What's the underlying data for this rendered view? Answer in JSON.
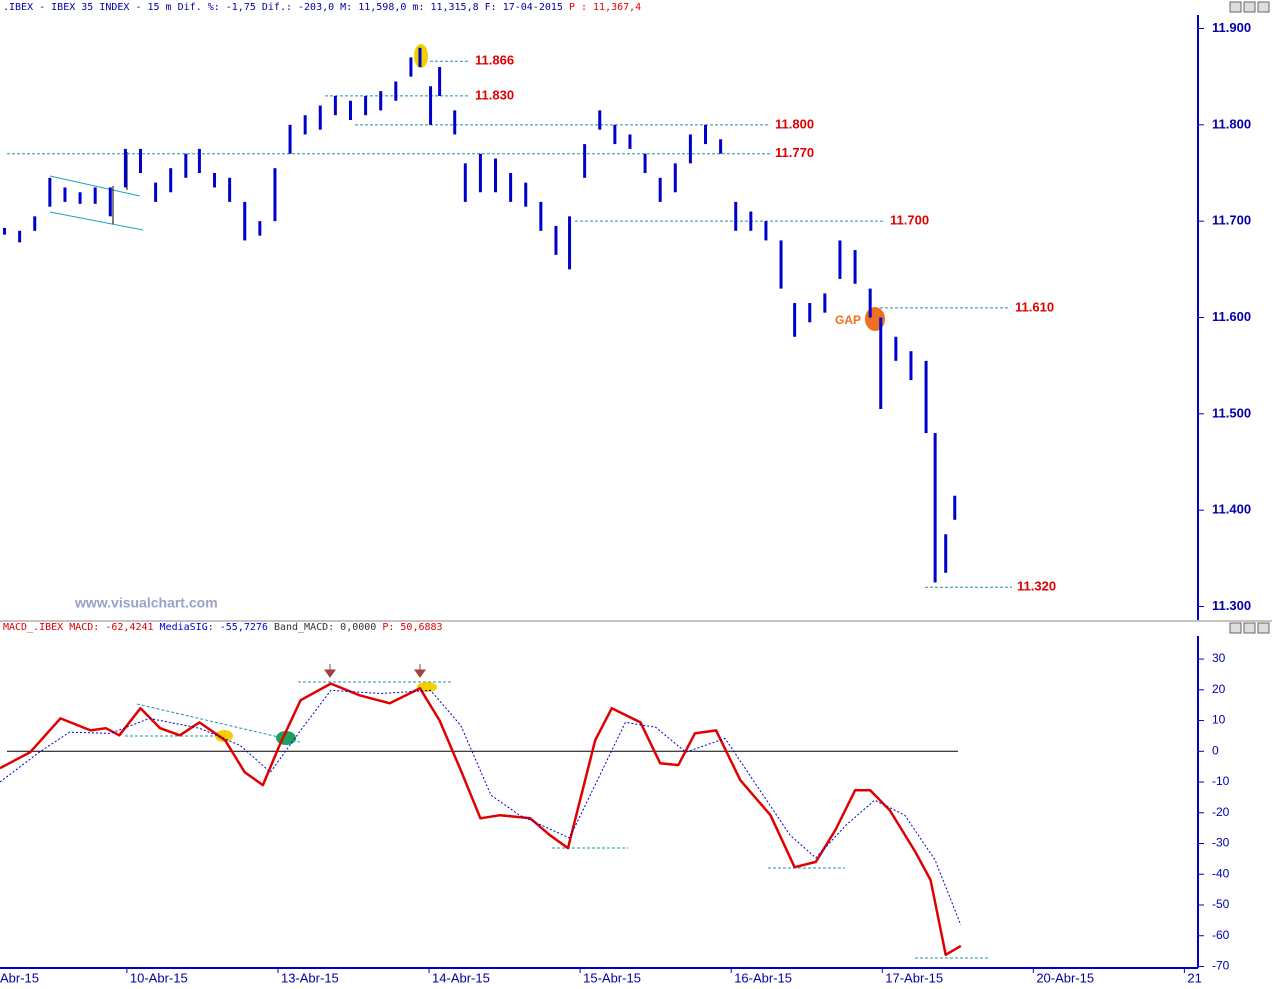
{
  "chart_data": [
    {
      "type": "hilo",
      "title": ".IBEX - IBEX 35 INDEX -  15 m Dif. %: -1,75 Dif.: -203,0 M: 11,598,0 m: 11,315,8 F: 17-04-2015",
      "title_price": "P : 11,367,4",
      "watermark": "www.visualchart.com",
      "annotation": "GAP",
      "color": "#0000cc",
      "x": [
        0.19,
        0.29,
        0.39,
        0.49,
        0.59,
        0.69,
        0.79,
        0.89,
        0.99,
        1.09,
        1.19,
        1.29,
        1.39,
        1.48,
        1.58,
        1.68,
        1.78,
        1.88,
        1.98,
        2.08,
        2.18,
        2.28,
        2.38,
        2.48,
        2.58,
        2.68,
        2.78,
        2.88,
        2.94,
        3.01,
        3.07,
        3.17,
        3.24,
        3.34,
        3.44,
        3.54,
        3.64,
        3.74,
        3.84,
        3.93,
        4.03,
        4.13,
        4.23,
        4.33,
        4.43,
        4.53,
        4.63,
        4.73,
        4.83,
        4.93,
        5.03,
        5.13,
        5.23,
        5.33,
        5.42,
        5.52,
        5.62,
        5.72,
        5.82,
        5.92,
        5.99,
        6.09,
        6.19,
        6.29,
        6.35,
        6.42,
        6.48
      ],
      "high": [
        11693,
        11690,
        11705,
        11745,
        11735,
        11730,
        11735,
        11735,
        11775,
        11775,
        11740,
        11755,
        11770,
        11775,
        11750,
        11745,
        11720,
        11700,
        11755,
        11800,
        11810,
        11820,
        11830,
        11825,
        11830,
        11835,
        11845,
        11870,
        11880,
        11840,
        11860,
        11815,
        11760,
        11770,
        11765,
        11750,
        11740,
        11720,
        11695,
        11705,
        11780,
        11815,
        11800,
        11790,
        11770,
        11745,
        11760,
        11790,
        11800,
        11785,
        11720,
        11710,
        11700,
        11680,
        11615,
        11615,
        11625,
        11680,
        11670,
        11630,
        11600,
        11580,
        11565,
        11555,
        11480,
        11375,
        11415
      ],
      "low": [
        11686,
        11678,
        11690,
        11715,
        11720,
        11718,
        11718,
        11705,
        11735,
        11750,
        11720,
        11730,
        11745,
        11750,
        11735,
        11720,
        11680,
        11685,
        11700,
        11770,
        11790,
        11795,
        11810,
        11805,
        11810,
        11815,
        11825,
        11850,
        11860,
        11800,
        11830,
        11790,
        11720,
        11730,
        11730,
        11720,
        11715,
        11690,
        11665,
        11650,
        11745,
        11795,
        11780,
        11775,
        11750,
        11720,
        11730,
        11760,
        11780,
        11770,
        11690,
        11690,
        11680,
        11630,
        11580,
        11595,
        11605,
        11640,
        11635,
        11600,
        11505,
        11555,
        11535,
        11480,
        11325,
        11335,
        11390
      ],
      "levels": [
        {
          "value": 11866,
          "label": "11.866"
        },
        {
          "value": 11830,
          "label": "11.830"
        },
        {
          "value": 11800,
          "label": "11.800"
        },
        {
          "value": 11770,
          "label": "11.770"
        },
        {
          "value": 11700,
          "label": "11.700"
        },
        {
          "value": 11610,
          "label": "11.610"
        },
        {
          "value": 11320,
          "label": "11.320"
        }
      ],
      "xlim": [
        0.16,
        8.09
      ],
      "ylim": [
        11286,
        11914
      ],
      "yticks": [
        {
          "value": 11900,
          "label": "11.900"
        },
        {
          "value": 11800,
          "label": "11.800"
        },
        {
          "value": 11700,
          "label": "11.700"
        },
        {
          "value": 11600,
          "label": "11.600"
        },
        {
          "value": 11500,
          "label": "11.500"
        },
        {
          "value": 11400,
          "label": "11.400"
        },
        {
          "value": 11300,
          "label": "11.300"
        }
      ]
    },
    {
      "type": "line",
      "title_parts": [
        "MACD_.IBEX MACD: -62,4241",
        "MediaSIG: -55,7276",
        "Band_MACD: 0,0000",
        "P: 50,6883"
      ],
      "series": [
        {
          "color": "#e00000",
          "x": [
            0.16,
            0.36,
            0.56,
            0.76,
            0.86,
            0.95,
            1.09,
            1.22,
            1.35,
            1.48,
            1.65,
            1.78,
            1.9,
            2.01,
            2.15,
            2.35,
            2.54,
            2.74,
            2.94,
            3.07,
            3.21,
            3.34,
            3.47,
            3.67,
            3.8,
            3.92,
            4.1,
            4.21,
            4.4,
            4.53,
            4.65,
            4.76,
            4.9,
            5.06,
            5.26,
            5.42,
            5.56,
            5.69,
            5.82,
            5.92,
            6.05,
            6.22,
            6.32,
            6.42,
            6.52
          ],
          "values": [
            -5.5,
            -0.3,
            10.7,
            6.8,
            7.5,
            5.2,
            14,
            7.5,
            5.2,
            9.4,
            3.6,
            -6.8,
            -11,
            1.9,
            16.6,
            22,
            18.2,
            15.6,
            20.5,
            10,
            -6.2,
            -21.8,
            -20.8,
            -21.8,
            -27.3,
            -31.5,
            3.6,
            14,
            9.4,
            -3.9,
            -4.5,
            5.8,
            6.8,
            -9.4,
            -20.8,
            -37.7,
            -36,
            -25.6,
            -12.7,
            -12.7,
            -19.2,
            -32.8,
            -41.9,
            -66.2,
            -63.3
          ]
        },
        {
          "color": "#0000cc",
          "x": [
            0.16,
            0.42,
            0.62,
            0.89,
            1.15,
            1.48,
            1.75,
            1.95,
            2.15,
            2.35,
            2.68,
            3.01,
            3.21,
            3.41,
            3.6,
            3.93,
            4.13,
            4.3,
            4.5,
            4.7,
            4.96,
            5.19,
            5.39,
            5.56,
            5.76,
            5.95,
            6.15,
            6.35,
            6.52
          ],
          "values": [
            -10,
            -0.3,
            6.2,
            5.8,
            10.7,
            7.5,
            1.9,
            -6.8,
            6.8,
            19.8,
            18.8,
            19.8,
            8.4,
            -14.3,
            -20.8,
            -28.2,
            -7.8,
            9.4,
            7.8,
            -0.3,
            4.2,
            -12.7,
            -27.3,
            -34.7,
            -24,
            -15.9,
            -20.8,
            -35.4,
            -56.5
          ]
        }
      ],
      "xlim": [
        0.16,
        8.09
      ],
      "ylim": [
        -70.5,
        37.5
      ],
      "yticks": [
        30,
        20,
        10,
        0,
        -10,
        -20,
        -30,
        -40,
        -50,
        -60,
        -70
      ],
      "xticks": [
        {
          "value": 0,
          "label": "Abr-15"
        },
        {
          "value": 1,
          "label": "10-Abr-15"
        },
        {
          "value": 2,
          "label": "13-Abr-15"
        },
        {
          "value": 3,
          "label": "14-Abr-15"
        },
        {
          "value": 4,
          "label": "15-Abr-15"
        },
        {
          "value": 5,
          "label": "16-Abr-15"
        },
        {
          "value": 6,
          "label": "17-Abr-15"
        },
        {
          "value": 7,
          "label": "20-Abr-15"
        },
        {
          "value": 8,
          "label": "21"
        }
      ]
    }
  ]
}
